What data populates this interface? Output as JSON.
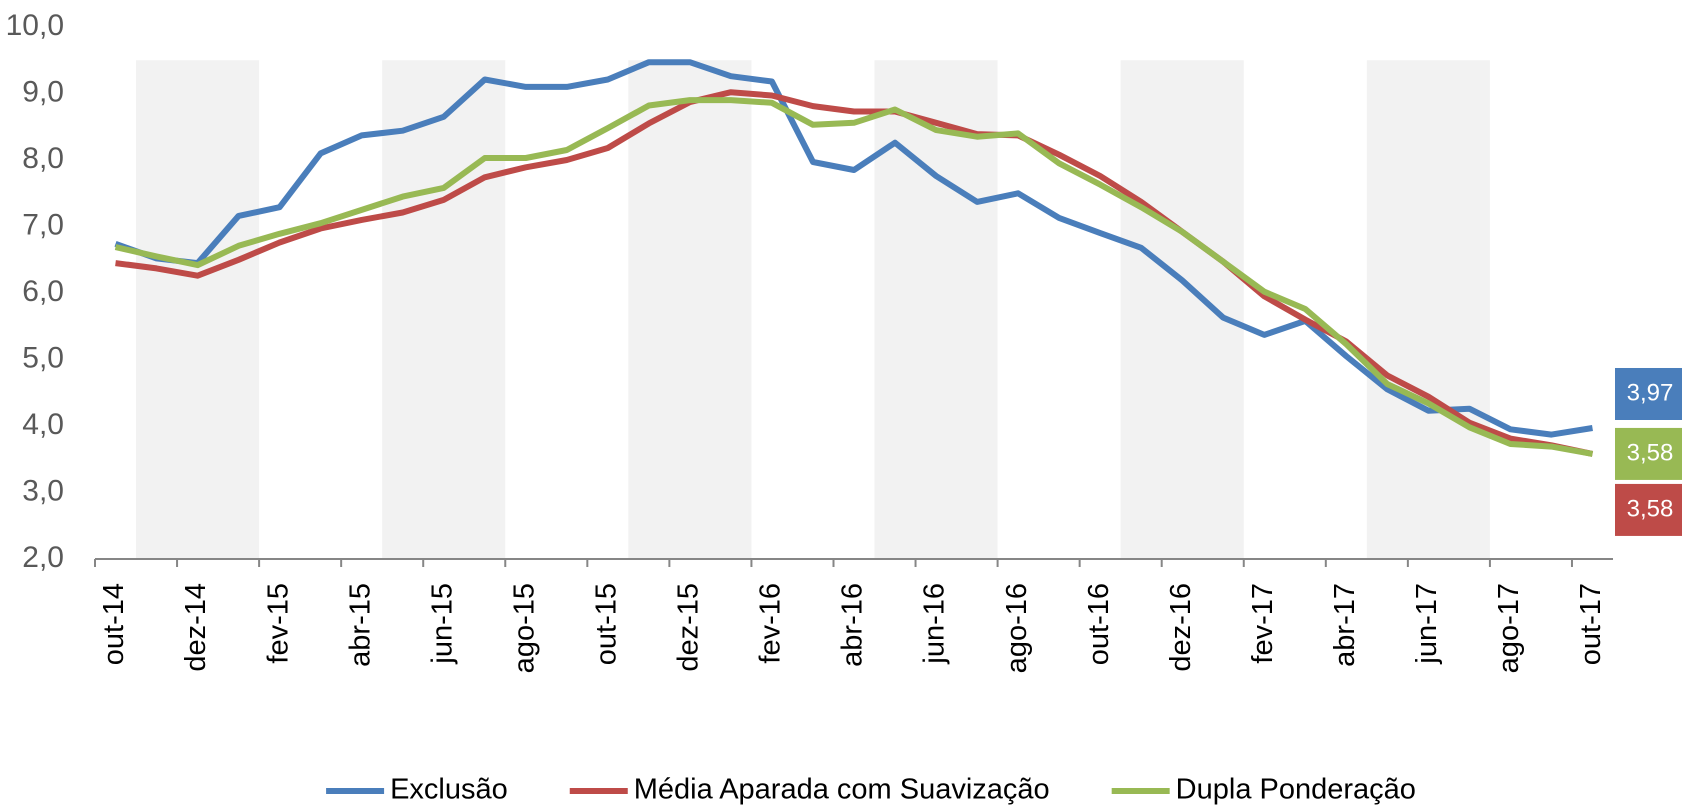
{
  "chart_data": {
    "type": "line",
    "categories": [
      "out-14",
      null,
      "dez-14",
      null,
      "fev-15",
      null,
      "abr-15",
      null,
      "jun-15",
      null,
      "ago-15",
      null,
      "out-15",
      null,
      "dez-15",
      null,
      "fev-16",
      null,
      "abr-16",
      null,
      "jun-16",
      null,
      "ago-16",
      null,
      "out-16",
      null,
      "dez-16",
      null,
      "fev-17",
      null,
      "abr-17",
      null,
      "jun-17",
      null,
      "ago-17",
      null,
      "out-17"
    ],
    "series": [
      {
        "name": "Exclusão",
        "color": "#4a7ebb",
        "end_label": "3,97",
        "values": [
          6.74,
          6.52,
          6.45,
          7.16,
          7.29,
          8.1,
          8.37,
          8.44,
          8.65,
          9.21,
          9.1,
          9.1,
          9.21,
          9.47,
          9.47,
          9.26,
          9.18,
          7.97,
          7.85,
          8.26,
          7.76,
          7.37,
          7.5,
          7.13,
          6.9,
          6.68,
          6.19,
          5.63,
          5.37,
          5.58,
          5.05,
          4.55,
          4.23,
          4.26,
          3.95,
          3.87,
          3.97
        ]
      },
      {
        "name": "Média Aparada com Suavização",
        "color": "#be4b48",
        "end_label": "3,58",
        "values": [
          6.45,
          6.37,
          6.26,
          6.5,
          6.76,
          6.97,
          7.1,
          7.21,
          7.4,
          7.74,
          7.89,
          8.0,
          8.18,
          8.55,
          8.87,
          9.02,
          8.97,
          8.81,
          8.73,
          8.73,
          8.56,
          8.39,
          8.37,
          8.08,
          7.76,
          7.37,
          6.92,
          6.47,
          5.95,
          5.6,
          5.27,
          4.76,
          4.44,
          4.05,
          3.81,
          3.71,
          3.58
        ]
      },
      {
        "name": "Dupla Ponderação",
        "color": "#98b954",
        "end_label": "3,58",
        "values": [
          6.69,
          6.55,
          6.42,
          6.71,
          6.89,
          7.05,
          7.25,
          7.45,
          7.58,
          8.03,
          8.03,
          8.15,
          8.48,
          8.82,
          8.9,
          8.9,
          8.86,
          8.53,
          8.56,
          8.76,
          8.45,
          8.35,
          8.4,
          7.95,
          7.63,
          7.29,
          6.92,
          6.47,
          6.02,
          5.76,
          5.23,
          4.63,
          4.34,
          3.98,
          3.73,
          3.69,
          3.58
        ]
      }
    ],
    "ylim": [
      2,
      10
    ],
    "yticks": [
      {
        "value": 2,
        "label": "2,0"
      },
      {
        "value": 3,
        "label": "3,0"
      },
      {
        "value": 4,
        "label": "4,0"
      },
      {
        "value": 5,
        "label": "5,0"
      },
      {
        "value": 6,
        "label": "6,0"
      },
      {
        "value": 7,
        "label": "7,0"
      },
      {
        "value": 8,
        "label": "8,0"
      },
      {
        "value": 9,
        "label": "9,0"
      },
      {
        "value": 10,
        "label": "10,0"
      }
    ],
    "grid": false,
    "legend": "bottom"
  }
}
